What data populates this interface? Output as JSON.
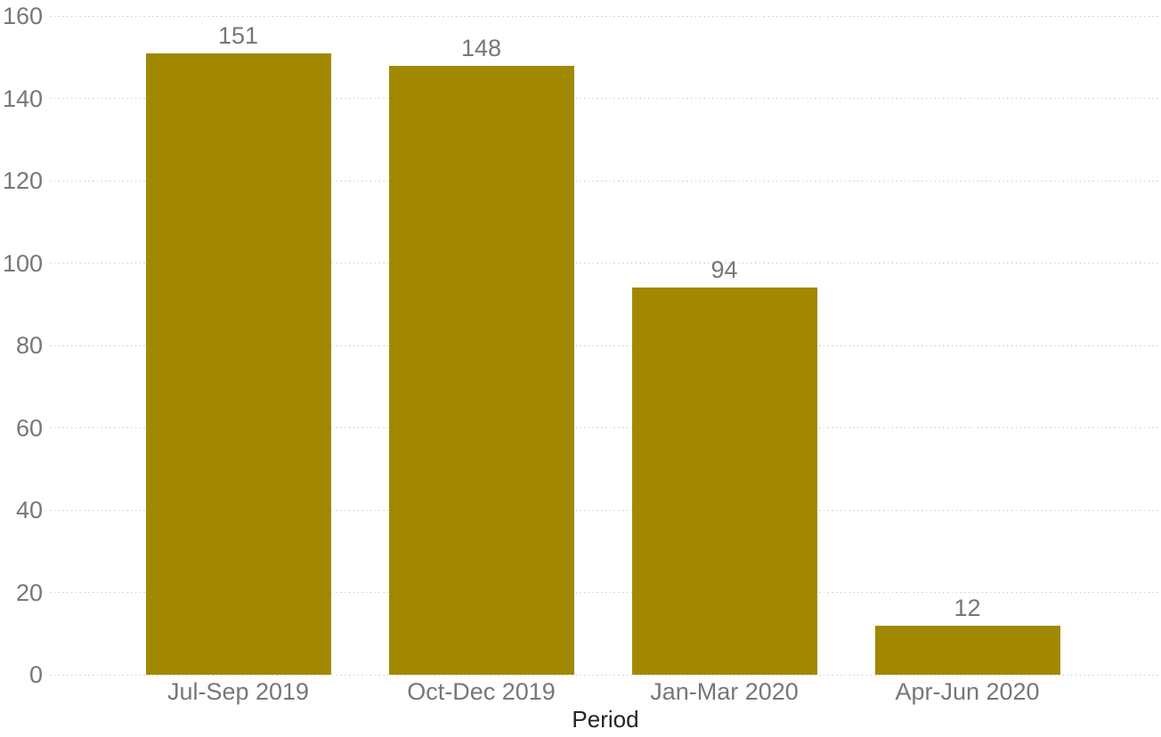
{
  "chart_data": {
    "type": "bar",
    "title": "",
    "categories": [
      "Jul-Sep 2019",
      "Oct-Dec 2019",
      "Jan-Mar 2020",
      "Apr-Jun 2020"
    ],
    "values": [
      151,
      148,
      94,
      12
    ],
    "data_labels": [
      "151",
      "148",
      "94",
      "12"
    ],
    "xlabel": "Period",
    "ylabel": "",
    "ylim": [
      0,
      160
    ],
    "ytick_interval": 20,
    "y_tick_labels": [
      "0",
      "20",
      "40",
      "60",
      "80",
      "100",
      "120",
      "140",
      "160"
    ],
    "grid": "dotted-horizontal",
    "legend": "none",
    "bar_color": "#A18800",
    "axis_text_color": "#777777",
    "gridline_color": "#C8C8C8",
    "xlabel_color": "#252423",
    "background_color": "#FFFFFF"
  }
}
